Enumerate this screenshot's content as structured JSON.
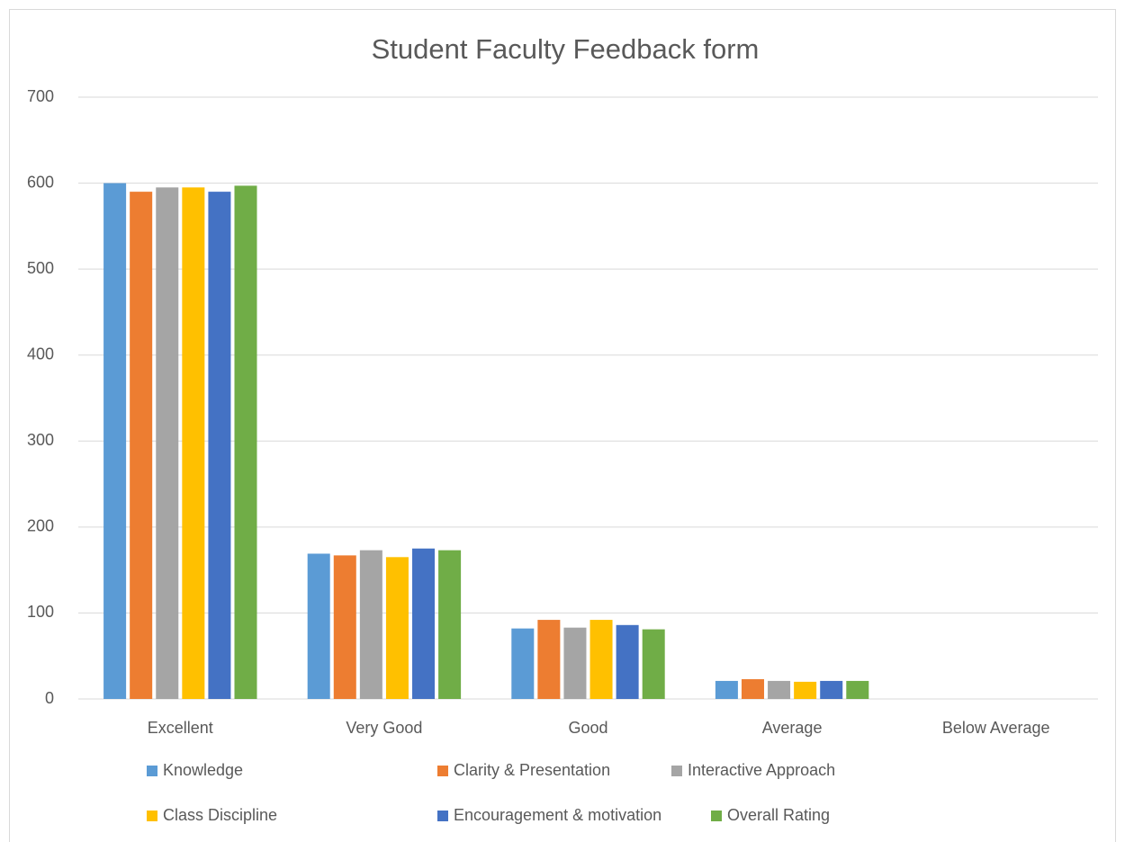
{
  "chart_data": {
    "type": "bar",
    "title": "Student Faculty Feedback form",
    "categories": [
      "Excellent",
      "Very Good",
      "Good",
      "Average",
      "Below Average"
    ],
    "series": [
      {
        "name": "Knowledge",
        "color": "#5b9bd5",
        "values": [
          600,
          169,
          82,
          21,
          0
        ]
      },
      {
        "name": "Clarity & Presentation",
        "color": "#ed7d31",
        "values": [
          590,
          167,
          92,
          23,
          0
        ]
      },
      {
        "name": "Interactive Approach",
        "color": "#a5a5a5",
        "values": [
          595,
          173,
          83,
          21,
          0
        ]
      },
      {
        "name": "Class Discipline",
        "color": "#ffc000",
        "values": [
          595,
          165,
          92,
          20,
          0
        ]
      },
      {
        "name": "Encouragement & motivation",
        "color": "#4472c4",
        "values": [
          590,
          175,
          86,
          21,
          0
        ]
      },
      {
        "name": "Overall Rating",
        "color": "#70ad47",
        "values": [
          597,
          173,
          81,
          21,
          0
        ]
      }
    ],
    "ylim": [
      0,
      700
    ],
    "yticks": [
      0,
      100,
      200,
      300,
      400,
      500,
      600,
      700
    ],
    "grid": true,
    "legend": "bottom"
  }
}
